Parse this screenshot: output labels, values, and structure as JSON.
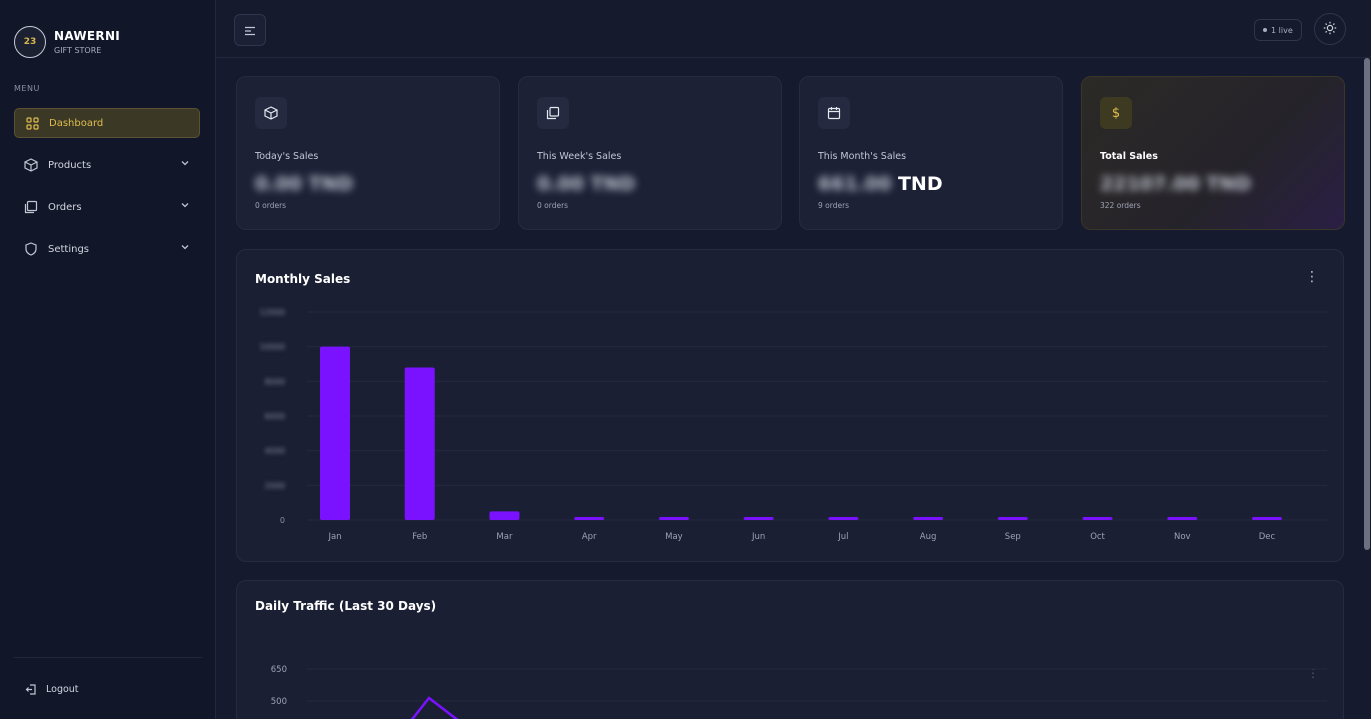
{
  "brand": {
    "name": "NAWERNI",
    "subtitle": "GIFT STORE"
  },
  "sidebar": {
    "menu_label": "MENU",
    "items": [
      {
        "label": "Dashboard",
        "icon": "grid-icon",
        "active": true
      },
      {
        "label": "Products",
        "icon": "cube-icon"
      },
      {
        "label": "Orders",
        "icon": "orders-icon"
      },
      {
        "label": "Settings",
        "icon": "shield-icon"
      }
    ],
    "logout_label": "Logout"
  },
  "topbar": {
    "online_label": "1 live"
  },
  "stats": [
    {
      "label": "Today's Sales",
      "value": "0.00 TND",
      "value_blurred": true,
      "orders": "0 orders",
      "icon": "cube-icon"
    },
    {
      "label": "This Week's Sales",
      "value": "0.00 TND",
      "value_blurred": true,
      "orders": "0 orders",
      "icon": "copy-icon"
    },
    {
      "label": "This Month's Sales",
      "value_number": "661.00",
      "value_unit": "TND",
      "value_blurred": true,
      "orders": "9 orders",
      "icon": "calendar-icon"
    },
    {
      "label": "Total Sales",
      "value": "22107.00 TND",
      "value_blurred": true,
      "orders": "322 orders",
      "icon": "dollar-icon"
    }
  ],
  "monthly": {
    "title": "Monthly Sales"
  },
  "traffic": {
    "title": "Daily Traffic (Last 30 Days)"
  },
  "colors": {
    "accent": "#7b12ff",
    "gold": "#e0bd4d",
    "background": "#161a2e"
  },
  "chart_data": [
    {
      "type": "bar",
      "title": "Monthly Sales",
      "categories": [
        "Jan",
        "Feb",
        "Mar",
        "Apr",
        "May",
        "Jun",
        "Jul",
        "Aug",
        "Sep",
        "Oct",
        "Nov",
        "Dec"
      ],
      "values": [
        10000,
        8800,
        500,
        0,
        0,
        0,
        0,
        0,
        0,
        0,
        0,
        0
      ],
      "ylim": [
        0,
        12000
      ],
      "yticks": [
        0,
        2000,
        4000,
        6000,
        8000,
        10000,
        12000
      ],
      "yticks_blurred": true,
      "grid": true
    },
    {
      "type": "line",
      "title": "Daily Traffic (Last 30 Days)",
      "yticks_visible": [
        500,
        650
      ],
      "grid": true
    }
  ]
}
